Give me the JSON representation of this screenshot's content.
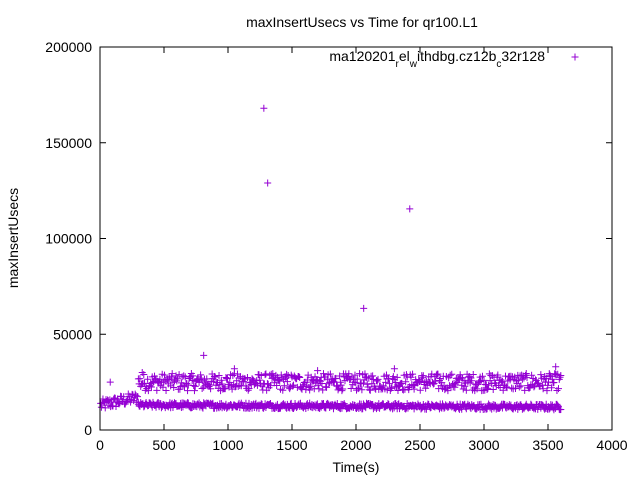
{
  "chart_data": {
    "type": "scatter",
    "title": "maxInsertUsecs vs Time for qr100.L1",
    "xlabel": "Time(s)",
    "ylabel": "maxInsertUsecs",
    "xlim": [
      0,
      4000
    ],
    "ylim": [
      0,
      200000
    ],
    "x_ticks": [
      0,
      500,
      1000,
      1500,
      2000,
      2500,
      3000,
      3500,
      4000
    ],
    "y_ticks": [
      0,
      50000,
      100000,
      150000,
      200000
    ],
    "x_tick_labels": [
      "0",
      "500",
      "1000",
      "1500",
      "2000",
      "2500",
      "3000",
      "3500",
      "4000"
    ],
    "y_tick_labels": [
      "0",
      "50000",
      "100000",
      "150000",
      "200000"
    ],
    "grid": false,
    "legend_position": "top-right",
    "marker": "plus",
    "series_color": "#9400d3",
    "legend": {
      "parts": [
        {
          "t": "ma120201",
          "sub": false
        },
        {
          "t": "r",
          "sub": true
        },
        {
          "t": "el",
          "sub": false
        },
        {
          "t": "w",
          "sub": true
        },
        {
          "t": "ithdbg.cz12b",
          "sub": false
        },
        {
          "t": "c",
          "sub": true
        },
        {
          "t": "32r128",
          "sub": false
        }
      ]
    },
    "series": [
      {
        "name": "ma120201_rel_withdbg.cz12b_c32r128",
        "bands": [
          {
            "x_start": 5,
            "x_end": 300,
            "y_start": 13000,
            "y_end": 17000,
            "spread": 3000,
            "step": 6
          },
          {
            "x_start": 300,
            "x_end": 3600,
            "y_start": 25000,
            "y_end": 25000,
            "spread": 4500,
            "step": 6
          },
          {
            "x_start": 300,
            "x_end": 3600,
            "y_start": 13000,
            "y_end": 12000,
            "spread": 1500,
            "step": 6
          }
        ],
        "points": [
          [
            80,
            25000
          ],
          [
            810,
            39000
          ],
          [
            1280,
            168000
          ],
          [
            1310,
            129000
          ],
          [
            2060,
            63500
          ],
          [
            2420,
            115500
          ],
          [
            330,
            30000
          ],
          [
            1050,
            32000
          ],
          [
            3560,
            33000
          ],
          [
            2300,
            32000
          ],
          [
            1700,
            31000
          ]
        ]
      }
    ]
  }
}
